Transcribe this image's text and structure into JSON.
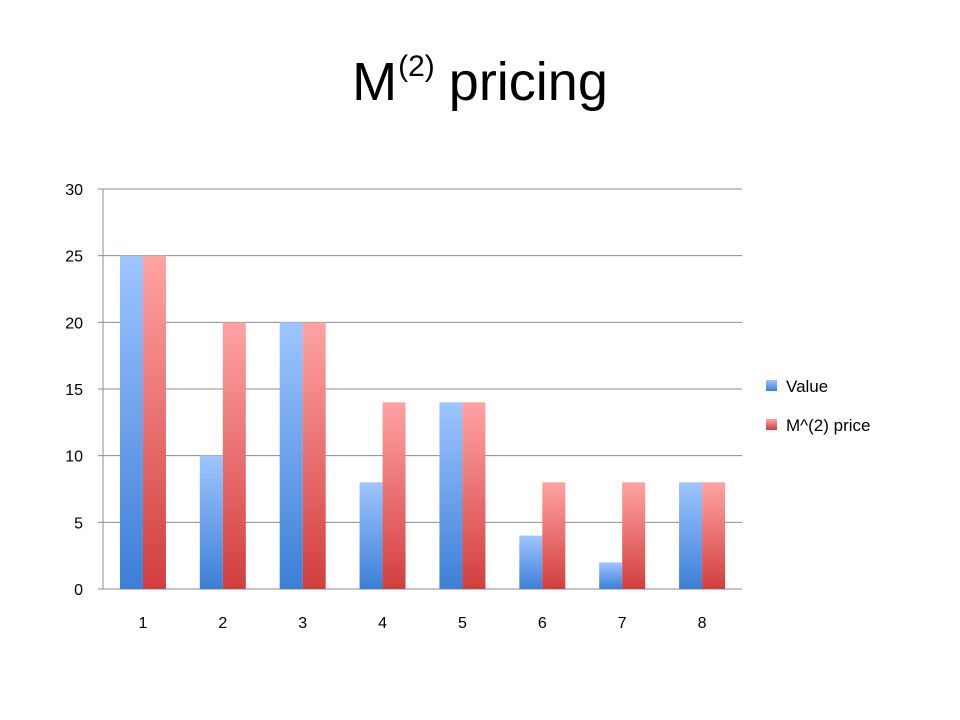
{
  "title": {
    "main": "M",
    "superscript": "(2)",
    "suffix": "pricing"
  },
  "chart_data": {
    "type": "bar",
    "categories": [
      "1",
      "2",
      "3",
      "4",
      "5",
      "6",
      "7",
      "8"
    ],
    "series": [
      {
        "name": "Value",
        "values": [
          25,
          10,
          20,
          8,
          14,
          4,
          2,
          8
        ],
        "color_top": "#9ec5ff",
        "color_bottom": "#3c7fd6"
      },
      {
        "name": "M^(2) price",
        "values": [
          25,
          20,
          20,
          14,
          14,
          8,
          8,
          8
        ],
        "color_top": "#ffa3a3",
        "color_bottom": "#d23e3e"
      }
    ],
    "ylim": [
      0,
      30
    ],
    "yticks": [
      0,
      5,
      10,
      15,
      20,
      25,
      30
    ],
    "grid": true,
    "legend": "right"
  }
}
